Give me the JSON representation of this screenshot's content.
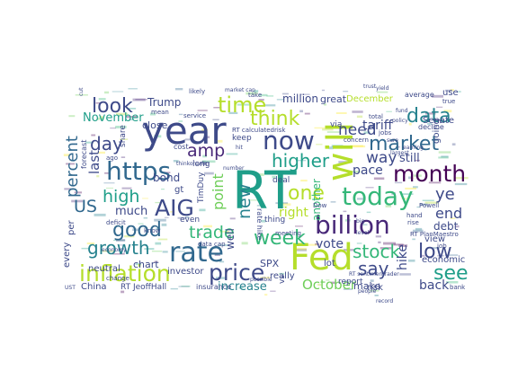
{
  "palette": [
    "#440154",
    "#482878",
    "#3e4a89",
    "#31688e",
    "#26828e",
    "#1f9e89",
    "#35b779",
    "#6ece58",
    "#b5de2b",
    "#fde725"
  ],
  "words": [
    {
      "text": "RT",
      "color": "#1f9e89"
    },
    {
      "text": "year",
      "color": "#3e4a89"
    },
    {
      "text": "will",
      "color": "#b5de2b"
    },
    {
      "text": "Fed",
      "color": "#b5de2b"
    },
    {
      "text": "now",
      "color": "#3e4a89"
    },
    {
      "text": "https",
      "color": "#31688e"
    },
    {
      "text": "rate",
      "color": "#31688e"
    },
    {
      "text": "billion",
      "color": "#482878"
    },
    {
      "text": "today",
      "color": "#35b779"
    },
    {
      "text": "inflation",
      "color": "#b5de2b"
    },
    {
      "text": "market",
      "color": "#31688e"
    },
    {
      "text": "month",
      "color": "#440154"
    },
    {
      "text": "price",
      "color": "#3e4a89"
    },
    {
      "text": "growth",
      "color": "#26828e"
    },
    {
      "text": "time",
      "color": "#b5de2b"
    },
    {
      "text": "think",
      "color": "#b5de2b"
    },
    {
      "text": "data",
      "color": "#26828e"
    },
    {
      "text": "look",
      "color": "#3e4a89"
    },
    {
      "text": "AIG",
      "color": "#3e4a89"
    },
    {
      "text": "good",
      "color": "#31688e"
    },
    {
      "text": "week",
      "color": "#35b779"
    },
    {
      "text": "higher",
      "color": "#1f9e89"
    },
    {
      "text": "one",
      "color": "#b5de2b"
    },
    {
      "text": "stock",
      "color": "#35b779"
    },
    {
      "text": "low",
      "color": "#3e4a89"
    },
    {
      "text": "see",
      "color": "#1f9e89"
    },
    {
      "text": "say",
      "color": "#3e4a89"
    },
    {
      "text": "day",
      "color": "#3e4a89"
    },
    {
      "text": "high",
      "color": "#1f9e89"
    },
    {
      "text": "trade",
      "color": "#35b779"
    },
    {
      "text": "US",
      "color": "#31688e"
    },
    {
      "text": "percent",
      "color": "#31688e"
    },
    {
      "text": "new",
      "color": "#26828e"
    },
    {
      "text": "amp",
      "color": "#482878"
    },
    {
      "text": "need",
      "color": "#3e4a89"
    },
    {
      "text": "way",
      "color": "#3e4a89"
    },
    {
      "text": "end",
      "color": "#3e4a89"
    },
    {
      "text": "ye",
      "color": "#3e4a89"
    },
    {
      "text": "October",
      "color": "#6ece58"
    },
    {
      "text": "point",
      "color": "#6ece58"
    },
    {
      "text": "last",
      "color": "#3e4a89"
    },
    {
      "text": "much",
      "color": "#3e4a89"
    },
    {
      "text": "bond",
      "color": "#3e4a89"
    },
    {
      "text": "November",
      "color": "#1f9e89"
    },
    {
      "text": "tariff",
      "color": "#3e4a89"
    },
    {
      "text": "pace",
      "color": "#3e4a89"
    },
    {
      "text": "still",
      "color": "#3e4a89"
    },
    {
      "text": "debt",
      "color": "#3e4a89"
    },
    {
      "text": "vote",
      "color": "#3e4a89"
    },
    {
      "text": "make",
      "color": "#3e4a89"
    },
    {
      "text": "hike",
      "color": "#3e4a89"
    },
    {
      "text": "back",
      "color": "#3e4a89"
    },
    {
      "text": "right",
      "color": "#b5de2b"
    },
    {
      "text": "increase",
      "color": "#26828e"
    },
    {
      "text": "million",
      "color": "#3e4a89"
    },
    {
      "text": "great",
      "color": "#3e4a89"
    },
    {
      "text": "December",
      "color": "#b5de2b"
    },
    {
      "text": "Trump",
      "color": "#3e4a89"
    },
    {
      "text": "close",
      "color": "#3e4a89"
    },
    {
      "text": "another",
      "color": "#35b779"
    },
    {
      "text": "SPX",
      "color": "#3e4a89"
    },
    {
      "text": "chart",
      "color": "#3e4a89"
    },
    {
      "text": "well",
      "color": "#3e4a89"
    },
    {
      "text": "neutral",
      "color": "#3e4a89"
    },
    {
      "text": "view",
      "color": "#3e4a89"
    },
    {
      "text": "economic",
      "color": "#3e4a89"
    },
    {
      "text": "China",
      "color": "#3e4a89"
    },
    {
      "text": "risk",
      "color": "#3e4a89"
    },
    {
      "text": "Senate",
      "color": "#3e4a89"
    },
    {
      "text": "investor",
      "color": "#3e4a89"
    },
    {
      "text": "every",
      "color": "#3e4a89"
    },
    {
      "text": "per",
      "color": "#3e4a89"
    },
    {
      "text": "gt",
      "color": "#3e4a89"
    },
    {
      "text": "really",
      "color": "#3e4a89"
    },
    {
      "text": "lot",
      "color": "#3e4a89"
    },
    {
      "text": "even",
      "color": "#3e4a89"
    },
    {
      "text": "long",
      "color": "#3e4a89"
    },
    {
      "text": "share",
      "color": "#3e4a89"
    },
    {
      "text": "use",
      "color": "#3e4a89"
    },
    {
      "text": "going",
      "color": "#3e4a89"
    },
    {
      "text": "rate hike",
      "color": "#3e4a89"
    },
    {
      "text": "deal",
      "color": "#3e4a89"
    },
    {
      "text": "vs",
      "color": "#3e4a89"
    },
    {
      "text": "keep",
      "color": "#3e4a89"
    },
    {
      "text": "via",
      "color": "#3e4a89"
    },
    {
      "text": "thing",
      "color": "#3e4a89"
    },
    {
      "text": "report",
      "color": "#3e4a89"
    },
    {
      "text": "cost",
      "color": "#3e4a89"
    },
    {
      "text": "insurance",
      "color": "#3e4a89"
    },
    {
      "text": "RT JeoffHall",
      "color": "#3e4a89"
    },
    {
      "text": "TimDuy",
      "color": "#3e4a89"
    },
    {
      "text": "RT calculatedrisk",
      "color": "#3e4a89"
    },
    {
      "text": "forecast",
      "color": "#3e4a89"
    },
    {
      "text": "record",
      "color": "#3e4a89"
    },
    {
      "text": "average",
      "color": "#3e4a89"
    },
    {
      "text": "decline",
      "color": "#3e4a89"
    },
    {
      "text": "number",
      "color": "#3e4a89"
    },
    {
      "text": "service",
      "color": "#3e4a89"
    },
    {
      "text": "fund",
      "color": "#3e4a89"
    },
    {
      "text": "change",
      "color": "#3e4a89"
    },
    {
      "text": "people",
      "color": "#3e4a89"
    },
    {
      "text": "data cap",
      "color": "#3e4a89"
    },
    {
      "text": "likely",
      "color": "#3e4a89"
    },
    {
      "text": "mean",
      "color": "#3e4a89"
    },
    {
      "text": "economy",
      "color": "#3e4a89"
    },
    {
      "text": "know",
      "color": "#3e4a89"
    },
    {
      "text": "total",
      "color": "#3e4a89"
    },
    {
      "text": "rise",
      "color": "#3e4a89"
    },
    {
      "text": "jobs",
      "color": "#3e4a89"
    },
    {
      "text": "concern",
      "color": "#3e4a89"
    },
    {
      "text": "policy",
      "color": "#3e4a89"
    },
    {
      "text": "Powell",
      "color": "#3e4a89"
    },
    {
      "text": "UST",
      "color": "#3e4a89"
    },
    {
      "text": "RT PlanMaestro",
      "color": "#3e4a89"
    },
    {
      "text": "deficit",
      "color": "#3e4a89"
    },
    {
      "text": "trust",
      "color": "#3e4a89"
    },
    {
      "text": "take",
      "color": "#3e4a89"
    },
    {
      "text": "hit",
      "color": "#3e4a89"
    },
    {
      "text": "true",
      "color": "#3e4a89"
    },
    {
      "text": "market cap",
      "color": "#3e4a89"
    },
    {
      "text": "ago",
      "color": "#3e4a89"
    },
    {
      "text": "level",
      "color": "#3e4a89"
    },
    {
      "text": "thinkorswim",
      "color": "#3e4a89"
    },
    {
      "text": "RT sentimentrader",
      "color": "#3e4a89"
    },
    {
      "text": "meeting",
      "color": "#3e4a89"
    },
    {
      "text": "possible",
      "color": "#3e4a89"
    },
    {
      "text": "bank",
      "color": "#3e4a89"
    },
    {
      "text": "Dow",
      "color": "#3e4a89"
    },
    {
      "text": "earning",
      "color": "#3e4a89"
    },
    {
      "text": "cut",
      "color": "#3e4a89"
    },
    {
      "text": "hand",
      "color": "#3e4a89"
    },
    {
      "text": "yield",
      "color": "#3e4a89"
    },
    {
      "text": "job",
      "color": "#3e4a89"
    },
    {
      "text": "largest",
      "color": "#3e4a89"
    },
    {
      "text": "sure",
      "color": "#3e4a89"
    },
    {
      "text": "big",
      "color": "#3e4a89"
    }
  ]
}
